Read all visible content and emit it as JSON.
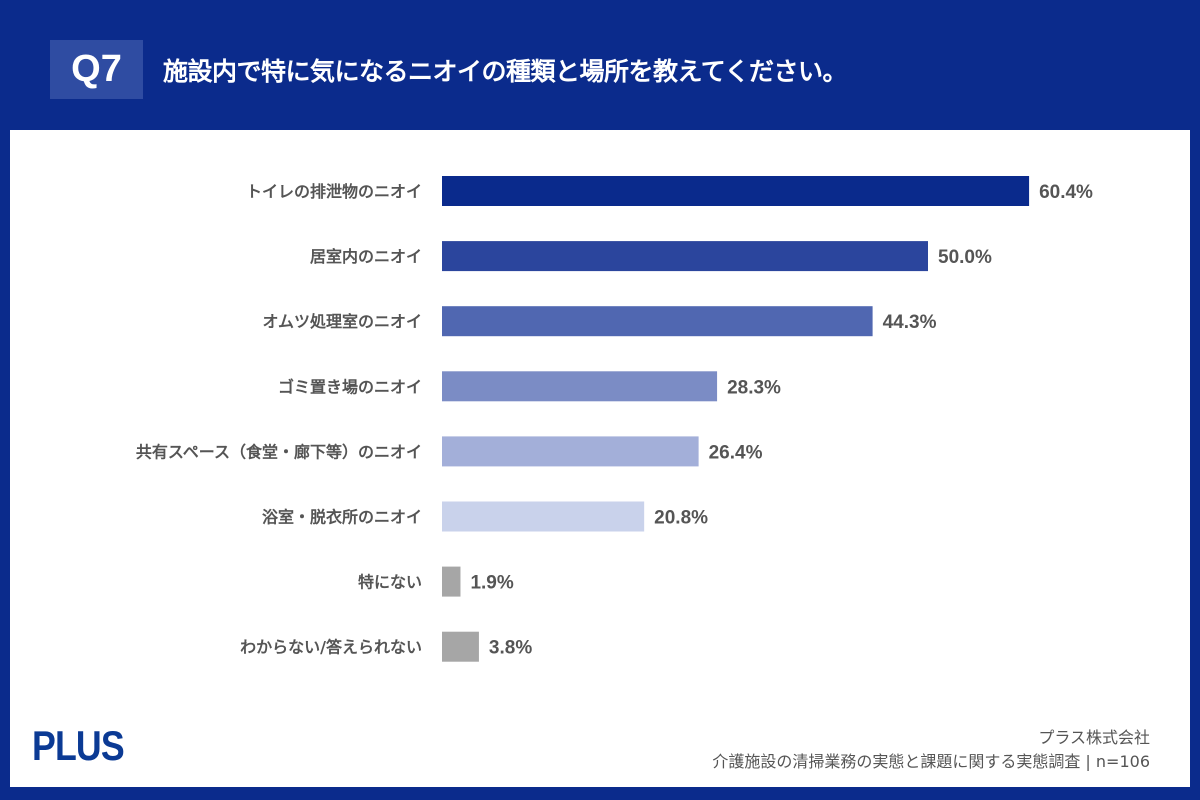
{
  "header": {
    "badge": "Q7",
    "title": "施設内で特に気になるニオイの種類と場所を教えてください。"
  },
  "footer": {
    "logo": "PLUS",
    "company": "プラス株式会社",
    "survey": "介護施設の清掃業務の実態と課題に関する実態調査 | n=106"
  },
  "chart_data": {
    "type": "bar",
    "orientation": "horizontal",
    "categories": [
      "トイレの排泄物のニオイ",
      "居室内のニオイ",
      "オムツ処理室のニオイ",
      "ゴミ置き場のニオイ",
      "共有スペース（食堂・廊下等）のニオイ",
      "浴室・脱衣所のニオイ",
      "特にない",
      "わからない/答えられない"
    ],
    "values": [
      60.4,
      50.0,
      44.3,
      28.3,
      26.4,
      20.8,
      1.9,
      3.8
    ],
    "labels": [
      "60.4%",
      "50.0%",
      "44.3%",
      "28.3%",
      "26.4%",
      "20.8%",
      "1.9%",
      "3.8%"
    ],
    "colors": [
      "#0a2a8c",
      "#2b459d",
      "#5067b1",
      "#7b8cc5",
      "#a3afd9",
      "#c9d2eb",
      "#a6a6a6",
      "#a6a6a6"
    ],
    "unit": "%",
    "grid": false
  }
}
